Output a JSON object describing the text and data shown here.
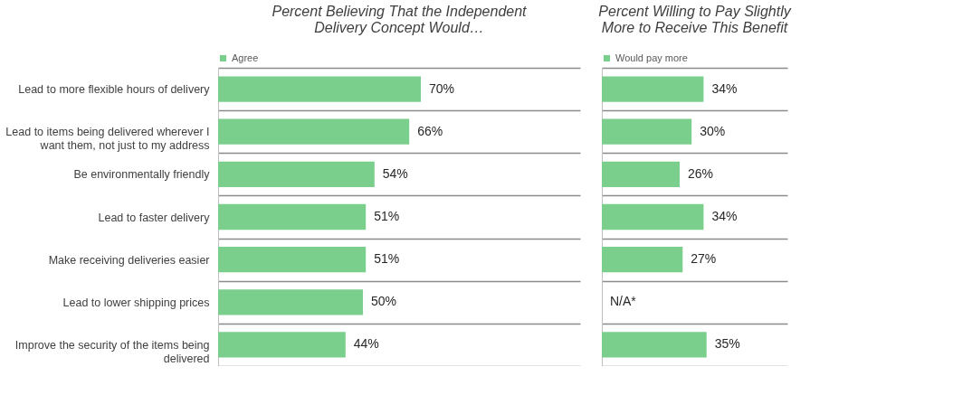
{
  "chart_data": [
    {
      "type": "bar",
      "orientation": "horizontal",
      "title": "Percent Believing That the Independent Delivery Concept Would…",
      "categories": [
        "Lead to more flexible hours of delivery",
        "Lead to items being delivered wherever I want them, not just to my address",
        "Be environmentally friendly",
        "Lead to faster delivery",
        "Make receiving deliveries easier",
        "Lead to lower shipping prices",
        "Improve the security of the items being delivered"
      ],
      "series": [
        {
          "name": "Agree",
          "color": "#7acf8d",
          "values": [
            70,
            66,
            54,
            51,
            51,
            50,
            44
          ],
          "value_labels": [
            "70%",
            "66%",
            "54%",
            "51%",
            "51%",
            "50%",
            "44%"
          ]
        }
      ],
      "xlim": [
        0,
        125
      ],
      "grid": "y",
      "legend": "top left",
      "tick_labels": "y"
    },
    {
      "type": "bar",
      "orientation": "horizontal",
      "title": "Percent Willing to Pay Slightly More to Receive This Benefit",
      "categories": [
        null,
        null,
        null,
        null,
        null,
        null,
        null
      ],
      "series": [
        {
          "name": "Would pay more",
          "color": "#7acf8d",
          "values": [
            34,
            30,
            26,
            34,
            27,
            null,
            35
          ],
          "value_labels": [
            "34%",
            "30%",
            "26%",
            "34%",
            "27%",
            "N/A*",
            "35%"
          ]
        }
      ],
      "xlim": [
        0,
        62
      ],
      "grid": "y",
      "legend": "top left",
      "tick_labels": false
    }
  ]
}
